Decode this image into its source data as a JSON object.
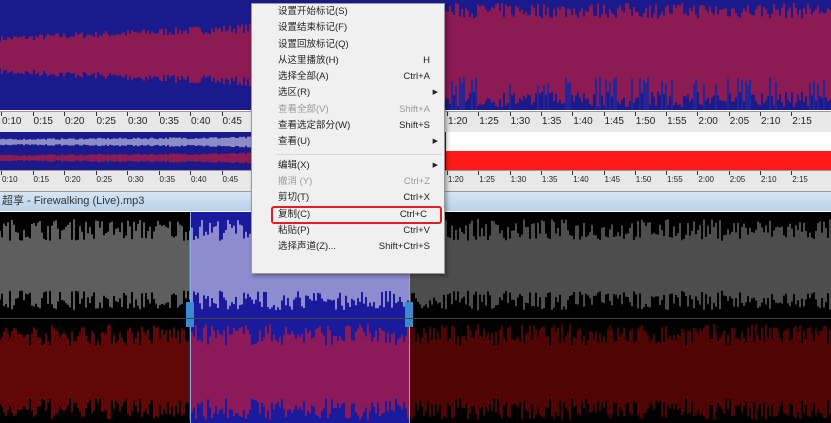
{
  "ruler_top": {
    "ticks_left": [
      "0:10",
      "0:15",
      "0:20",
      "0:25",
      "0:30",
      "0:35",
      "0:40",
      "0:45"
    ],
    "ticks_right": [
      "1:20",
      "1:25",
      "1:30",
      "1:35",
      "1:40",
      "1:45",
      "1:50",
      "1:55",
      "2:00",
      "2:05",
      "2:10",
      "2:15"
    ]
  },
  "ruler_bottom": {
    "ticks_left": [
      "0:10",
      "0:15",
      "0:20",
      "0:25",
      "0:30",
      "0:35",
      "0:40",
      "0:45"
    ],
    "ticks_right": [
      "1:20",
      "1:25",
      "1:30",
      "1:35",
      "1:40",
      "1:45",
      "1:50",
      "1:55",
      "2:00",
      "2:05",
      "2:10",
      "2:15"
    ]
  },
  "titlebar": {
    "title": "超享 - Firewalking (Live).mp3"
  },
  "colors": {
    "wave_bg": "#1a1a8c",
    "wave_red": "#ff1a1a",
    "wave_white": "#ffffff",
    "bottom_bg": "#000000",
    "selection_bg": "#1a1a9c",
    "highlight": "#e02020"
  },
  "menu": {
    "items": [
      {
        "label": "设置开始标记(S)",
        "shortcut": "",
        "disabled": false
      },
      {
        "label": "设置结束标记(F)",
        "shortcut": "",
        "disabled": false
      },
      {
        "label": "设置回放标记(Q)",
        "shortcut": "",
        "disabled": false
      },
      {
        "label": "从这里播放(H)",
        "shortcut": "H",
        "disabled": false
      },
      {
        "label": "选择全部(A)",
        "shortcut": "Ctrl+A",
        "disabled": false
      },
      {
        "label": "选区(R)",
        "shortcut": "",
        "submenu": true,
        "disabled": false
      },
      {
        "label": "查看全部(V)",
        "shortcut": "Shift+A",
        "disabled": true
      },
      {
        "label": "查看选定部分(W)",
        "shortcut": "Shift+S",
        "disabled": false
      },
      {
        "label": "查看(U)",
        "shortcut": "",
        "submenu": true,
        "disabled": false
      },
      {
        "label": "编辑(X)",
        "shortcut": "",
        "submenu": true,
        "disabled": false
      },
      {
        "label": "撤消 (Y)",
        "shortcut": "Ctrl+Z",
        "disabled": true
      },
      {
        "label": "剪切(T)",
        "shortcut": "Ctrl+X",
        "disabled": false
      },
      {
        "label": "复制(C)",
        "shortcut": "Ctrl+C",
        "disabled": false,
        "highlighted": true
      },
      {
        "label": "粘贴(P)",
        "shortcut": "Ctrl+V",
        "disabled": false
      },
      {
        "label": "选择声道(Z)...",
        "shortcut": "Shift+Ctrl+S",
        "disabled": false
      }
    ]
  }
}
